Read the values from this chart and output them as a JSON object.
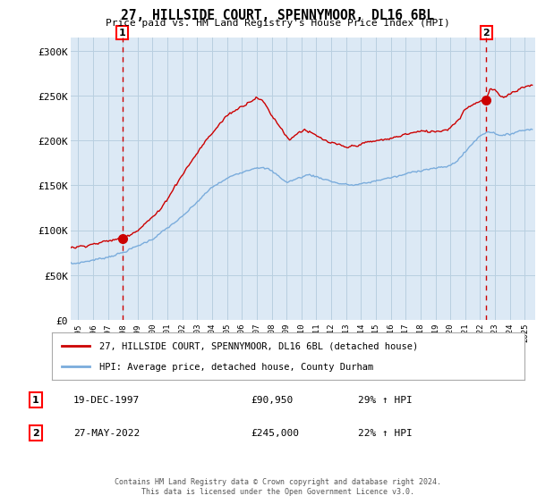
{
  "title": "27, HILLSIDE COURT, SPENNYMOOR, DL16 6BL",
  "subtitle": "Price paid vs. HM Land Registry's House Price Index (HPI)",
  "legend_line1": "27, HILLSIDE COURT, SPENNYMOOR, DL16 6BL (detached house)",
  "legend_line2": "HPI: Average price, detached house, County Durham",
  "transaction1_date": "19-DEC-1997",
  "transaction1_price": "£90,950",
  "transaction1_hpi": "29% ↑ HPI",
  "transaction1_year": 1997.97,
  "transaction1_value": 90950,
  "transaction2_date": "27-MAY-2022",
  "transaction2_price": "£245,000",
  "transaction2_hpi": "22% ↑ HPI",
  "transaction2_year": 2022.41,
  "transaction2_value": 245000,
  "hpi_color": "#7aacdc",
  "price_color": "#cc0000",
  "dashed_color": "#cc0000",
  "background_color": "#ffffff",
  "plot_bg_color": "#dce9f5",
  "grid_color": "#b8cfe0",
  "footer": "Contains HM Land Registry data © Crown copyright and database right 2024.\nThis data is licensed under the Open Government Licence v3.0.",
  "ylim": [
    0,
    315000
  ],
  "xlim_start": 1994.5,
  "xlim_end": 2025.7,
  "yticks": [
    0,
    50000,
    100000,
    150000,
    200000,
    250000,
    300000
  ],
  "ytick_labels": [
    "£0",
    "£50K",
    "£100K",
    "£150K",
    "£200K",
    "£250K",
    "£300K"
  ],
  "xticks": [
    1995,
    1996,
    1997,
    1998,
    1999,
    2000,
    2001,
    2002,
    2003,
    2004,
    2005,
    2006,
    2007,
    2008,
    2009,
    2010,
    2011,
    2012,
    2013,
    2014,
    2015,
    2016,
    2017,
    2018,
    2019,
    2020,
    2021,
    2022,
    2023,
    2024,
    2025
  ]
}
